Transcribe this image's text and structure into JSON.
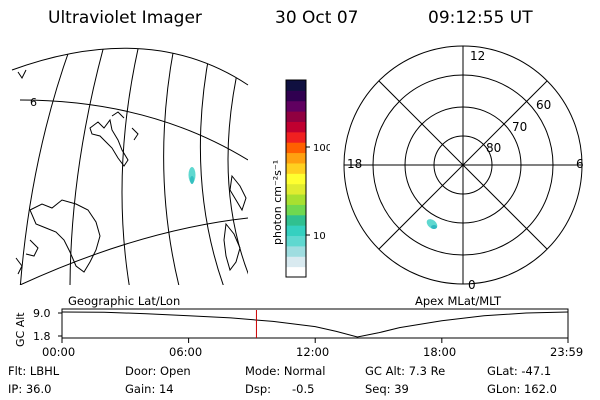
{
  "header": {
    "instrument": "Ultraviolet Imager",
    "date": "30 Oct 07",
    "time": "09:12:55 UT"
  },
  "geo_panel": {
    "label": "Geographic Lat/Lon",
    "lon_tick": "6"
  },
  "colorbar": {
    "unit": "photon cm⁻²s⁻¹",
    "tick_100": "100",
    "tick_10": "10",
    "colors": [
      "#ffffff",
      "#d9eaf0",
      "#9fdde0",
      "#5fd8d0",
      "#35d0c0",
      "#30c090",
      "#70d850",
      "#a8e030",
      "#e0ec30",
      "#ffff30",
      "#ffd020",
      "#ffa010",
      "#ff6000",
      "#f02020",
      "#c00030",
      "#900040",
      "#600060",
      "#300050",
      "#101040"
    ]
  },
  "polar_panel": {
    "label": "Apex MLat/MLT",
    "lat_labels": [
      "80",
      "70",
      "60"
    ],
    "mlt_labels": [
      "12",
      "6",
      "0",
      "18"
    ]
  },
  "timeline": {
    "ylabel": "GC Alt",
    "y_ticks": [
      "9.0",
      "1.8"
    ],
    "x_ticks": [
      "00:00",
      "06:00",
      "12:00",
      "18:00",
      "23:59"
    ],
    "marker_color": "#cc0000"
  },
  "info": {
    "flt": "Flt: LBHL",
    "door": "Door: Open",
    "mode": "Mode: Normal",
    "gc_alt": "GC Alt: 7.3 Re",
    "glat": "GLat: -47.1",
    "ip": "IP: 36.0",
    "gain": "Gain: 14",
    "dsp_label": "Dsp:",
    "dsp_value": "-0.5",
    "seq": "Seq: 39",
    "glon": "GLon: 162.0"
  },
  "chart_data": {
    "type": "line",
    "title": "",
    "xlabel": "",
    "ylabel": "GC Alt",
    "x": [
      0,
      2,
      4,
      6,
      8,
      10,
      12,
      13,
      14,
      15,
      16,
      18,
      20,
      22,
      23.98
    ],
    "values": [
      9.0,
      8.9,
      8.5,
      7.9,
      7.3,
      6.3,
      4.8,
      3.4,
      1.8,
      3.0,
      4.5,
      6.5,
      7.9,
      8.7,
      9.0
    ],
    "xlim": [
      0,
      23.98
    ],
    "ylim": [
      1.8,
      9.0
    ],
    "current_time": 9.215
  }
}
